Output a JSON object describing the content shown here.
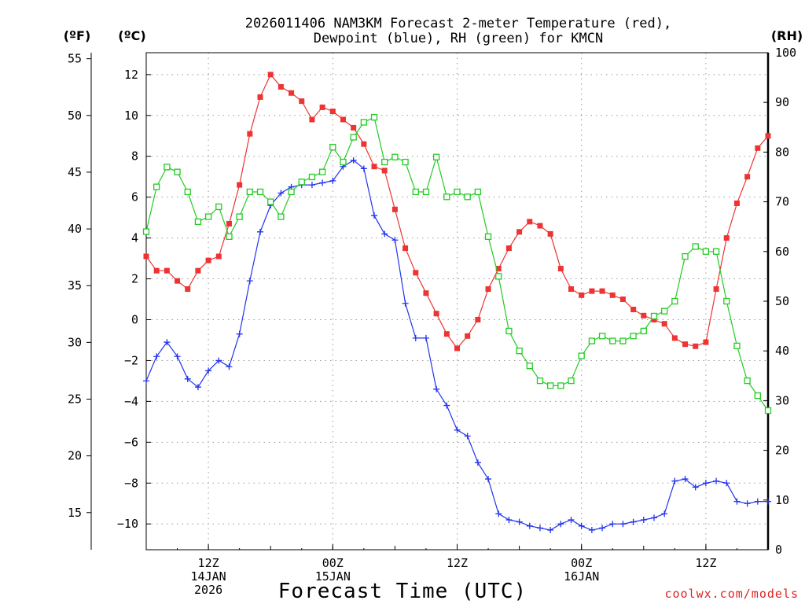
{
  "colors": {
    "temperature": "#ee3333",
    "dewpoint": "#2233ee",
    "rh": "#22cc22",
    "grid": "#999999",
    "credit": "#dd2222"
  },
  "chart_data": {
    "type": "line",
    "title": "2026011406 NAM3KM Forecast 2-meter Temperature (red),",
    "title_line2": "Dewpoint (blue), RH (green) for KMCN",
    "xlabel": "Forecast Time (UTC)",
    "credit": "coolwx.com/models",
    "units": {
      "fahrenheit": "(ºF)",
      "celsius": "(ºC)",
      "rh": "(RH)"
    },
    "x_unit": "forecast hour from 2026-01-14 06Z",
    "xlim": [
      0,
      60
    ],
    "celsius_ticks": [
      12,
      10,
      8,
      6,
      4,
      2,
      0,
      -2,
      -4,
      -6,
      -8,
      -10
    ],
    "celsius_tick_labels": [
      "12",
      "10",
      "8",
      "6",
      "4",
      "2",
      "0",
      "−2",
      "−4",
      "−6",
      "−8",
      "−10"
    ],
    "fahrenheit_ticks": [
      55,
      50,
      45,
      40,
      35,
      30,
      25,
      20,
      15
    ],
    "fahrenheit_tick_labels": [
      "55",
      "50",
      "45",
      "40",
      "35",
      "30",
      "25",
      "20",
      "15"
    ],
    "rh_ticks": [
      100,
      90,
      80,
      70,
      60,
      50,
      40,
      30,
      20,
      10,
      0
    ],
    "rh_tick_labels": [
      "100",
      "90",
      "80",
      "70",
      "60",
      "50",
      "40",
      "30",
      "20",
      "10",
      "0"
    ],
    "ylim_celsius": [
      -11.3,
      12.9
    ],
    "ylim_rh": [
      0,
      100
    ],
    "x_ticks": [
      {
        "hour": 6,
        "lines": [
          "12Z",
          "14JAN",
          "2026"
        ]
      },
      {
        "hour": 18,
        "lines": [
          "00Z",
          "15JAN"
        ]
      },
      {
        "hour": 30,
        "lines": [
          "12Z"
        ]
      },
      {
        "hour": 42,
        "lines": [
          "00Z",
          "16JAN"
        ]
      },
      {
        "hour": 54,
        "lines": [
          "12Z"
        ]
      }
    ],
    "series": [
      {
        "name": "Temperature",
        "unit": "°C",
        "color_key": "temperature",
        "marker": "filled-square",
        "x": [
          0,
          1,
          2,
          3,
          4,
          5,
          6,
          7,
          8,
          9,
          10,
          11,
          12,
          13,
          14,
          15,
          16,
          17,
          18,
          19,
          20,
          21,
          22,
          23,
          24,
          25,
          26,
          27,
          28,
          29,
          30,
          31,
          32,
          33,
          34,
          35,
          36,
          37,
          38,
          39,
          40,
          41,
          42,
          43,
          44,
          45,
          46,
          47,
          48,
          49,
          50,
          51,
          52,
          53,
          54,
          55,
          56,
          57,
          58,
          59,
          60
        ],
        "values": [
          3.1,
          2.4,
          2.4,
          1.9,
          1.5,
          2.4,
          2.9,
          3.1,
          4.7,
          6.6,
          9.1,
          10.9,
          12.0,
          11.4,
          11.1,
          10.7,
          9.8,
          10.4,
          10.2,
          9.8,
          9.4,
          8.6,
          7.5,
          7.3,
          5.4,
          3.5,
          2.3,
          1.3,
          0.3,
          -0.7,
          -1.4,
          -0.8,
          0.0,
          1.5,
          2.5,
          3.5,
          4.3,
          4.8,
          4.6,
          4.2,
          2.5,
          1.5,
          1.2,
          1.4,
          1.4,
          1.2,
          1.0,
          0.5,
          0.2,
          0.0,
          -0.2,
          -0.9,
          -1.2,
          -1.3,
          -1.1,
          1.5,
          4.0,
          5.7,
          7.0,
          8.4,
          9.0
        ]
      },
      {
        "name": "Dewpoint",
        "unit": "°C",
        "color_key": "dewpoint",
        "marker": "plus",
        "x": [
          0,
          1,
          2,
          3,
          4,
          5,
          6,
          7,
          8,
          9,
          10,
          11,
          12,
          13,
          14,
          15,
          16,
          17,
          18,
          19,
          20,
          21,
          22,
          23,
          24,
          25,
          26,
          27,
          28,
          29,
          30,
          31,
          32,
          33,
          34,
          35,
          36,
          37,
          38,
          39,
          40,
          41,
          42,
          43,
          44,
          45,
          46,
          47,
          48,
          49,
          50,
          51,
          52,
          53,
          54,
          55,
          56,
          57,
          58,
          59,
          60
        ],
        "values": [
          -3.0,
          -1.8,
          -1.1,
          -1.8,
          -2.9,
          -3.3,
          -2.5,
          -2.0,
          -2.3,
          -0.7,
          1.9,
          4.3,
          5.6,
          6.2,
          6.5,
          6.6,
          6.6,
          6.7,
          6.8,
          7.5,
          7.8,
          7.4,
          5.1,
          4.2,
          3.9,
          0.8,
          -0.9,
          -0.9,
          -3.4,
          -4.2,
          -5.4,
          -5.7,
          -7.0,
          -7.8,
          -9.5,
          -9.8,
          -9.9,
          -10.1,
          -10.2,
          -10.3,
          -10.0,
          -9.8,
          -10.1,
          -10.3,
          -10.2,
          -10.0,
          -10.0,
          -9.9,
          -9.8,
          -9.7,
          -9.5,
          -7.9,
          -7.8,
          -8.2,
          -8.0,
          -7.9,
          -8.0,
          -8.9,
          -9.0,
          -8.9,
          -8.9
        ]
      },
      {
        "name": "Relative Humidity",
        "unit": "%",
        "color_key": "rh",
        "marker": "open-square",
        "x": [
          0,
          1,
          2,
          3,
          4,
          5,
          6,
          7,
          8,
          9,
          10,
          11,
          12,
          13,
          14,
          15,
          16,
          17,
          18,
          19,
          20,
          21,
          22,
          23,
          24,
          25,
          26,
          27,
          28,
          29,
          30,
          31,
          32,
          33,
          34,
          35,
          36,
          37,
          38,
          39,
          40,
          41,
          42,
          43,
          44,
          45,
          46,
          47,
          48,
          49,
          50,
          51,
          52,
          53,
          54,
          55,
          56,
          57,
          58,
          59,
          60
        ],
        "values": [
          64,
          73,
          77,
          76,
          72,
          66,
          67,
          69,
          63,
          67,
          72,
          72,
          70,
          67,
          72,
          74,
          75,
          76,
          81,
          78,
          83,
          86,
          87,
          78,
          79,
          78,
          72,
          72,
          79,
          71,
          72,
          71,
          72,
          63,
          55,
          44,
          40,
          37,
          34,
          33,
          33,
          34,
          39,
          42,
          43,
          42,
          42,
          43,
          44,
          47,
          48,
          50,
          59,
          61,
          60,
          60,
          50,
          41,
          34,
          31,
          28
        ]
      }
    ]
  }
}
